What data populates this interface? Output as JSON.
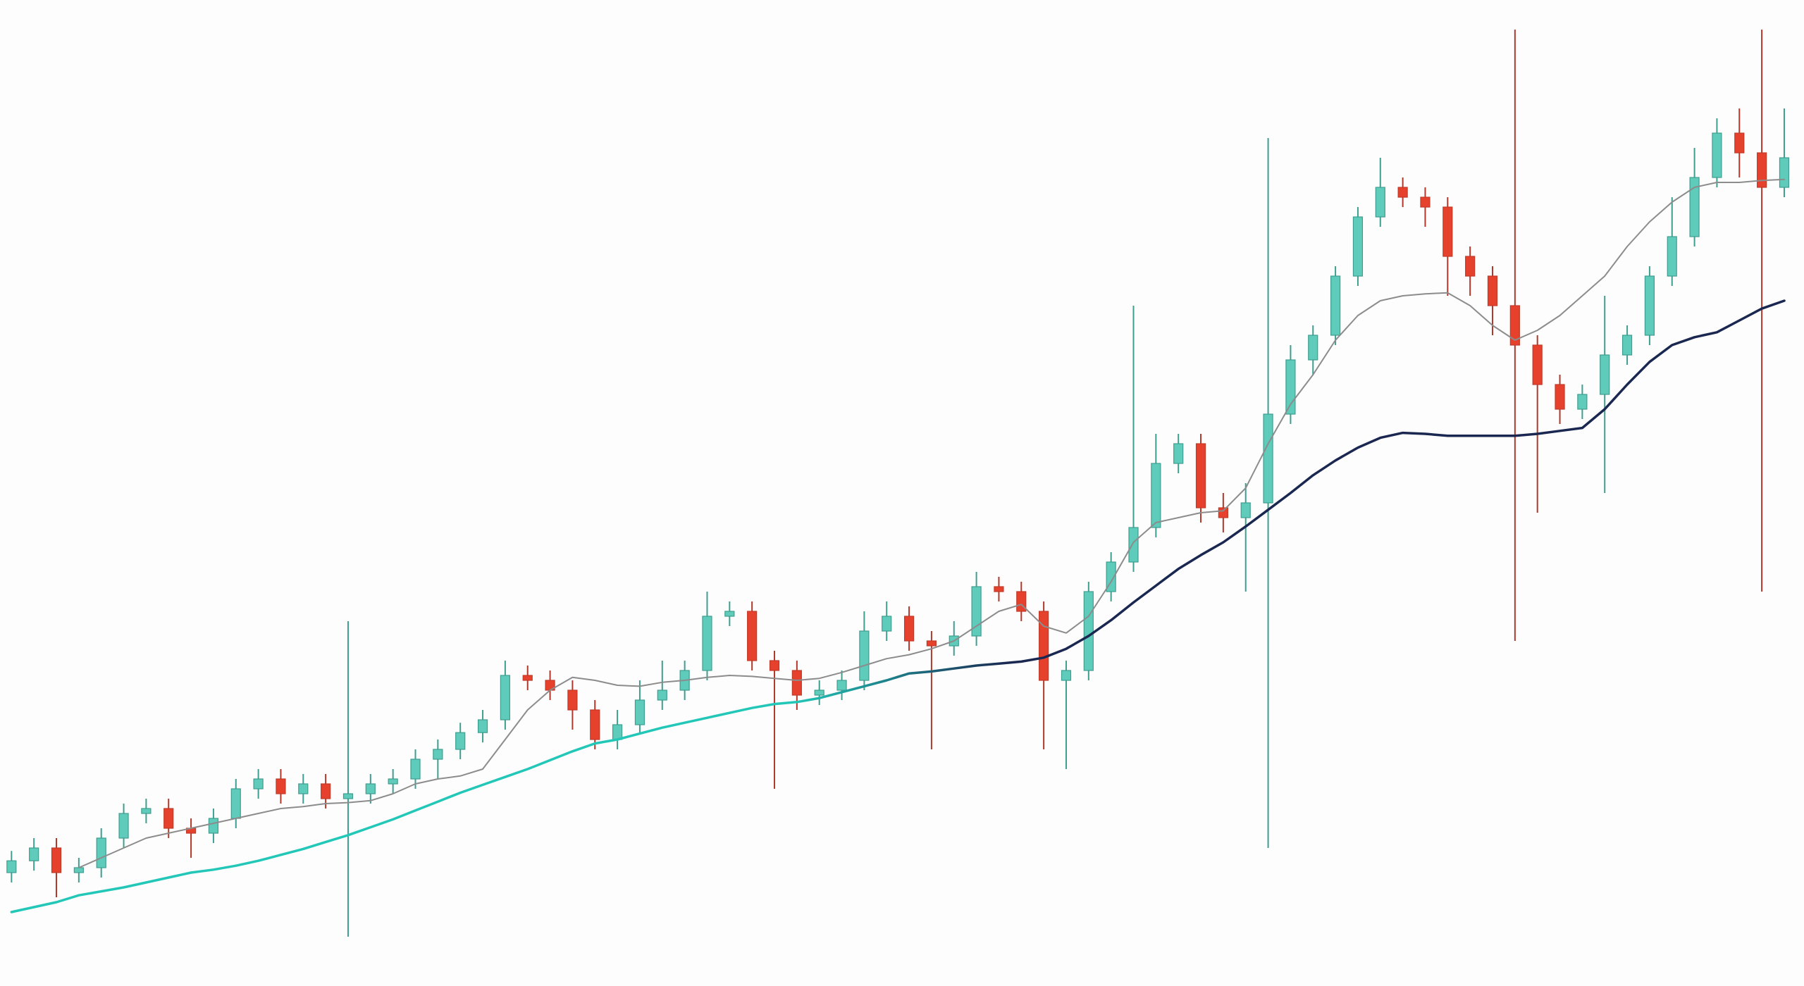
{
  "chart_data": {
    "type": "candlestick",
    "ylim": [
      0,
      100
    ],
    "up_color": "#5fcbbb",
    "down_color": "#e5412d",
    "open": [
      11.5,
      12.7,
      14,
      11.5,
      12,
      15,
      17.5,
      18,
      16,
      15.5,
      17,
      20,
      21,
      19.5,
      20.5,
      19,
      19.5,
      20.5,
      21,
      23,
      24,
      25.7,
      27,
      31.5,
      31,
      30,
      28,
      25,
      26.5,
      29,
      30,
      32,
      37.5,
      38,
      33,
      32,
      29.5,
      30,
      31,
      36,
      37.5,
      35,
      34.5,
      35.5,
      40.5,
      40,
      38,
      31,
      32,
      40,
      43,
      46.5,
      53,
      55,
      48.5,
      47.5,
      49,
      58,
      63.5,
      66,
      72,
      78,
      81,
      80,
      79,
      74,
      72,
      69,
      65,
      61,
      58.5,
      60,
      64,
      66,
      72,
      76,
      82,
      86.5,
      84.5,
      81
    ],
    "high": [
      13.7,
      15,
      15,
      13,
      16,
      18.5,
      19,
      19,
      17,
      18,
      21,
      22,
      22,
      21.5,
      21.5,
      37,
      21.5,
      22,
      24,
      25,
      26.7,
      28,
      33,
      32.5,
      32,
      31,
      29,
      28,
      31,
      33,
      33,
      40,
      39,
      39,
      34,
      33,
      31,
      32,
      38,
      39,
      38.5,
      36,
      37,
      42,
      41.5,
      41,
      39,
      33,
      41,
      44,
      69,
      56,
      56,
      56,
      50,
      51,
      86,
      65,
      67,
      73,
      79,
      84,
      82,
      81,
      80,
      75,
      73,
      97,
      66,
      62,
      61,
      70,
      67,
      73,
      80,
      85,
      88,
      89,
      97,
      89
    ],
    "low": [
      10.5,
      11.7,
      9,
      10.5,
      11,
      14,
      16.5,
      15,
      13,
      14.5,
      16,
      19,
      18.5,
      18.5,
      18,
      5,
      18.5,
      19.5,
      20,
      21,
      23,
      24.7,
      26,
      30,
      29,
      26,
      24,
      24,
      25.5,
      28,
      29,
      31,
      36.5,
      32,
      20,
      28,
      28.5,
      29,
      30,
      35,
      34,
      24,
      33.5,
      34.5,
      39,
      37,
      24,
      22,
      31,
      39,
      42,
      45.5,
      52,
      47,
      46,
      40,
      14,
      57,
      62,
      65,
      71,
      77,
      79,
      77,
      70,
      70,
      66,
      35,
      48,
      57,
      57.5,
      50,
      63,
      65,
      71,
      75,
      81,
      82,
      40,
      80
    ],
    "close": [
      12.7,
      14,
      11.5,
      12,
      15,
      17.5,
      18,
      16,
      15.5,
      17,
      20,
      21,
      19.5,
      20.5,
      19,
      19.5,
      20.5,
      21,
      23,
      24,
      25.7,
      27,
      31.5,
      31,
      30,
      28,
      25,
      26.5,
      29,
      30,
      32,
      37.5,
      38,
      33,
      32,
      29.5,
      30,
      31,
      36,
      37.5,
      35,
      34.5,
      35.5,
      40.5,
      40,
      38,
      31,
      32,
      40,
      43,
      46.5,
      53,
      55,
      48.5,
      47.5,
      49,
      58,
      63.5,
      66,
      72,
      78,
      81,
      80,
      79,
      74,
      72,
      69,
      65,
      61,
      58.5,
      60,
      64,
      66,
      72,
      76,
      82,
      86.5,
      84.5,
      81,
      84
    ],
    "overlays": [
      {
        "colors": [
          "#8c8c8c"
        ],
        "values": [
          null,
          null,
          null,
          12,
          13,
          14,
          15,
          15.5,
          16,
          16.5,
          17,
          17.5,
          18,
          18.2,
          18.5,
          18.6,
          18.8,
          19.5,
          20.5,
          21,
          21.3,
          22,
          25,
          28,
          30,
          31.3,
          31,
          30.5,
          30.4,
          30.8,
          31,
          31.3,
          31.5,
          31.4,
          31.2,
          31,
          31.2,
          31.8,
          32.5,
          33.2,
          33.6,
          34.2,
          35,
          36.5,
          38,
          38.7,
          36.5,
          35.8,
          37.5,
          41,
          45,
          47,
          47.5,
          48,
          48.2,
          50.5,
          55,
          59,
          62,
          65.5,
          68,
          69.5,
          70,
          70.2,
          70.3,
          69,
          67,
          65.5,
          66.5,
          68,
          70,
          72,
          75,
          77.5,
          79.5,
          81,
          81.5,
          81.5,
          81.7,
          81.8
        ]
      },
      {
        "colors": [
          "#22c7b8",
          "#1a2750"
        ],
        "values": [
          7.5,
          8,
          8.5,
          9.2,
          9.6,
          10,
          10.5,
          11,
          11.5,
          11.8,
          12.2,
          12.7,
          13.3,
          13.9,
          14.6,
          15.3,
          16.1,
          16.9,
          17.8,
          18.7,
          19.6,
          20.4,
          21.2,
          22,
          22.9,
          23.8,
          24.6,
          25,
          25.6,
          26.2,
          26.7,
          27.2,
          27.7,
          28.2,
          28.6,
          28.8,
          29.2,
          29.8,
          30.4,
          31,
          31.7,
          31.9,
          32.2,
          32.5,
          32.7,
          32.9,
          33.3,
          34.2,
          35.5,
          37.1,
          38.9,
          40.6,
          42.3,
          43.7,
          45,
          46.6,
          48.3,
          50,
          51.8,
          53.3,
          54.6,
          55.6,
          56.1,
          56,
          55.8,
          55.8,
          55.8,
          55.8,
          56,
          56.3,
          56.6,
          58.5,
          61,
          63.3,
          65,
          65.8,
          66.3,
          67.5,
          68.7,
          69.5
        ]
      }
    ]
  }
}
